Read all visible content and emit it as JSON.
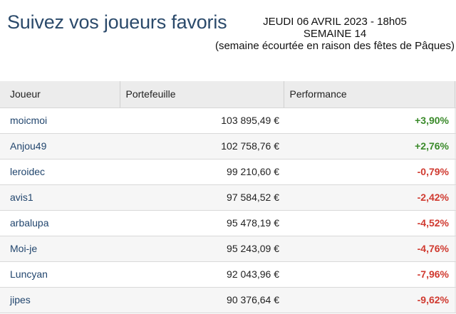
{
  "header": {
    "title": "Suivez vos joueurs favoris",
    "date_line": "JEUDI 06 AVRIL 2023 - 18h05",
    "week_line": "SEMAINE 14",
    "note_line": "(semaine écourtée en raison des fêtes de Pâques)"
  },
  "table": {
    "columns": [
      "Joueur",
      "Portefeuille",
      "Performance"
    ],
    "rows": [
      {
        "player": "moicmoi",
        "portfolio": "103 895,49 €",
        "performance": "+3,90%",
        "trend": "up"
      },
      {
        "player": "Anjou49",
        "portfolio": "102 758,76 €",
        "performance": "+2,76%",
        "trend": "up"
      },
      {
        "player": "leroidec",
        "portfolio": "99 210,60 €",
        "performance": "-0,79%",
        "trend": "down"
      },
      {
        "player": "avis1",
        "portfolio": "97 584,52 €",
        "performance": "-2,42%",
        "trend": "down"
      },
      {
        "player": "arbalupa",
        "portfolio": "95 478,19 €",
        "performance": "-4,52%",
        "trend": "down"
      },
      {
        "player": "Moi-je",
        "portfolio": "95 243,09 €",
        "performance": "-4,76%",
        "trend": "down"
      },
      {
        "player": "Luncyan",
        "portfolio": "92 043,96 €",
        "performance": "-7,96%",
        "trend": "down"
      },
      {
        "player": "jipes",
        "portfolio": "90 376,64 €",
        "performance": "-9,62%",
        "trend": "down"
      }
    ]
  },
  "colors": {
    "title": "#2b4a6b",
    "player_link": "#22466e",
    "positive": "#3a8a2a",
    "negative": "#d03a30",
    "header_bg": "#ececec"
  }
}
